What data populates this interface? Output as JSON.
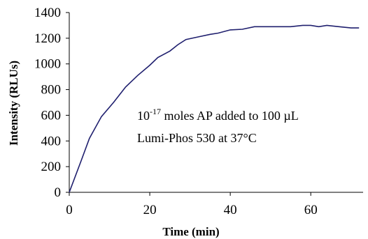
{
  "chart_data": {
    "type": "line",
    "xlabel": "Time (min)",
    "ylabel": "Intensity (RLUs)",
    "xlim": [
      0,
      73
    ],
    "ylim": [
      0,
      1400
    ],
    "x_ticks": [
      0,
      20,
      40,
      60
    ],
    "y_ticks": [
      0,
      200,
      400,
      600,
      800,
      1000,
      1200,
      1400
    ],
    "grid": false,
    "line_color": "#1F1F6E",
    "annotation": {
      "line1_base": "10",
      "line1_exp": "-17",
      "line1_rest": " moles AP added to 100 µL",
      "line2": "Lumi-Phos 530 at 37°C"
    },
    "series": [
      {
        "x": [
          0,
          3,
          5,
          8,
          11,
          14,
          17,
          20,
          22,
          25,
          27,
          29,
          32,
          35,
          37,
          40,
          43,
          46,
          49,
          52,
          55,
          58,
          60,
          62,
          64,
          67,
          70,
          72
        ],
        "y": [
          0,
          250,
          420,
          590,
          700,
          820,
          910,
          990,
          1050,
          1100,
          1150,
          1190,
          1210,
          1230,
          1240,
          1265,
          1270,
          1290,
          1290,
          1290,
          1290,
          1300,
          1300,
          1290,
          1300,
          1290,
          1280,
          1280
        ]
      }
    ]
  }
}
